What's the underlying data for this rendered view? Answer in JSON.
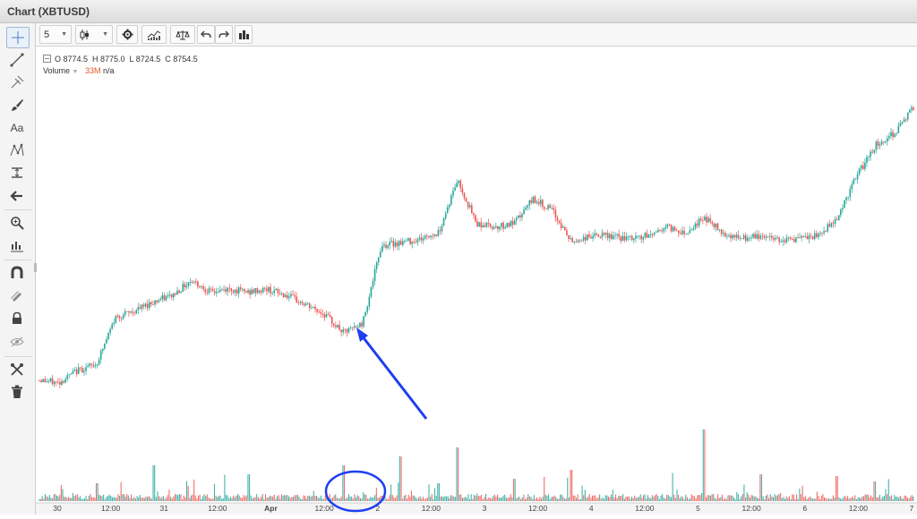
{
  "window": {
    "title": "Chart (XBTUSD)"
  },
  "toolbar": {
    "interval_label": "5",
    "interval_caret": "▼",
    "style_caret": "▼"
  },
  "icons": [
    "crosshair-icon",
    "trend-line-icon",
    "pitchfork-icon",
    "brush-icon",
    "text-icon",
    "pattern-icon",
    "measure-icon",
    "arrow-back-icon",
    "zoom-icon",
    "magnet-icon",
    "ruler-icon",
    "lock-icon",
    "eye-off-icon",
    "tools-icon",
    "trash-icon"
  ],
  "legend": {
    "ohlc": "O 8774.5  H 8775.0  L 8724.5  C 8754.5",
    "volume_label": "Volume",
    "volume_value": "33M",
    "volume_extra": "n/a"
  },
  "colors": {
    "up": "#26a69a",
    "down": "#ef5350",
    "annotation": "#1f3ff0",
    "volume_value": "#e0562b"
  },
  "chart_data": {
    "type": "line",
    "symbol": "XBTUSD",
    "x_tick_labels": [
      "30",
      "12:00",
      "31",
      "12:00",
      "Apr",
      "12:00",
      "2",
      "12:00",
      "3",
      "12:00",
      "4",
      "12:00",
      "5",
      "12:00",
      "6",
      "12:00",
      "7"
    ],
    "price_points": [
      {
        "t": 0,
        "p": 35
      },
      {
        "t": 0.5,
        "p": 34
      },
      {
        "t": 1,
        "p": 38
      },
      {
        "t": 1.5,
        "p": 40
      },
      {
        "t": 2,
        "p": 55
      },
      {
        "t": 2.5,
        "p": 57
      },
      {
        "t": 3,
        "p": 60
      },
      {
        "t": 3.5,
        "p": 62
      },
      {
        "t": 4,
        "p": 67
      },
      {
        "t": 4.5,
        "p": 63
      },
      {
        "t": 5,
        "p": 64
      },
      {
        "t": 5.5,
        "p": 63
      },
      {
        "t": 6,
        "p": 64
      },
      {
        "t": 6.5,
        "p": 62
      },
      {
        "t": 7,
        "p": 59
      },
      {
        "t": 7.5,
        "p": 56
      },
      {
        "t": 8,
        "p": 50
      },
      {
        "t": 8.5,
        "p": 53
      },
      {
        "t": 9,
        "p": 78
      },
      {
        "t": 9.5,
        "p": 79
      },
      {
        "t": 10,
        "p": 80
      },
      {
        "t": 10.5,
        "p": 82
      },
      {
        "t": 11,
        "p": 99
      },
      {
        "t": 11.5,
        "p": 85
      },
      {
        "t": 12,
        "p": 84
      },
      {
        "t": 12.5,
        "p": 85
      },
      {
        "t": 13,
        "p": 93
      },
      {
        "t": 13.5,
        "p": 89
      },
      {
        "t": 14,
        "p": 79
      },
      {
        "t": 14.5,
        "p": 81
      },
      {
        "t": 15,
        "p": 81
      },
      {
        "t": 15.5,
        "p": 80
      },
      {
        "t": 16,
        "p": 81
      },
      {
        "t": 16.5,
        "p": 84
      },
      {
        "t": 17,
        "p": 82
      },
      {
        "t": 17.5,
        "p": 87
      },
      {
        "t": 18,
        "p": 82
      },
      {
        "t": 18.5,
        "p": 80
      },
      {
        "t": 19,
        "p": 81
      },
      {
        "t": 19.5,
        "p": 80
      },
      {
        "t": 20,
        "p": 80
      },
      {
        "t": 20.5,
        "p": 81
      },
      {
        "t": 21,
        "p": 87
      },
      {
        "t": 21.5,
        "p": 100
      },
      {
        "t": 22,
        "p": 110
      },
      {
        "t": 22.5,
        "p": 114
      },
      {
        "t": 23,
        "p": 122
      }
    ],
    "volume_spikes": [
      {
        "t": 1.5,
        "v": 20
      },
      {
        "t": 3,
        "v": 40
      },
      {
        "t": 5.5,
        "v": 30
      },
      {
        "t": 8,
        "v": 40
      },
      {
        "t": 9.5,
        "v": 50
      },
      {
        "t": 10.5,
        "v": 20
      },
      {
        "t": 11,
        "v": 60
      },
      {
        "t": 12.5,
        "v": 25
      },
      {
        "t": 14,
        "v": 35
      },
      {
        "t": 17.5,
        "v": 80
      },
      {
        "t": 19,
        "v": 30
      },
      {
        "t": 21,
        "v": 28
      },
      {
        "t": 22,
        "v": 22
      }
    ],
    "xlabel": "",
    "ylabel": ""
  }
}
